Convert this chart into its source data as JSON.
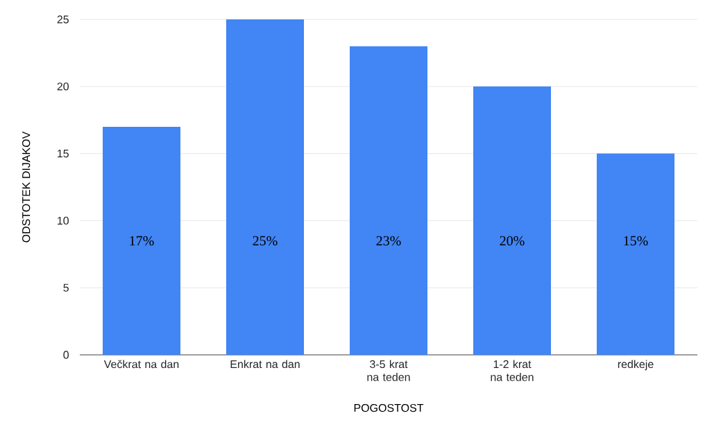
{
  "chart_data": {
    "type": "bar",
    "xlabel": "POGOSTOST",
    "ylabel": "ODSTOTEK DIJAKOV",
    "categories": [
      "Večkrat na dan",
      "Enkrat na dan",
      "3-5 krat na teden",
      "1-2 krat na teden",
      "redkeje"
    ],
    "values": [
      17,
      25,
      23,
      20,
      15
    ],
    "value_labels": [
      "17%",
      "25%",
      "23%",
      "20%",
      "15%"
    ],
    "color": "#4285f4",
    "ylim": [
      0,
      25
    ],
    "yticks": [
      0,
      5,
      10,
      15,
      20,
      25
    ],
    "grid": "y"
  }
}
